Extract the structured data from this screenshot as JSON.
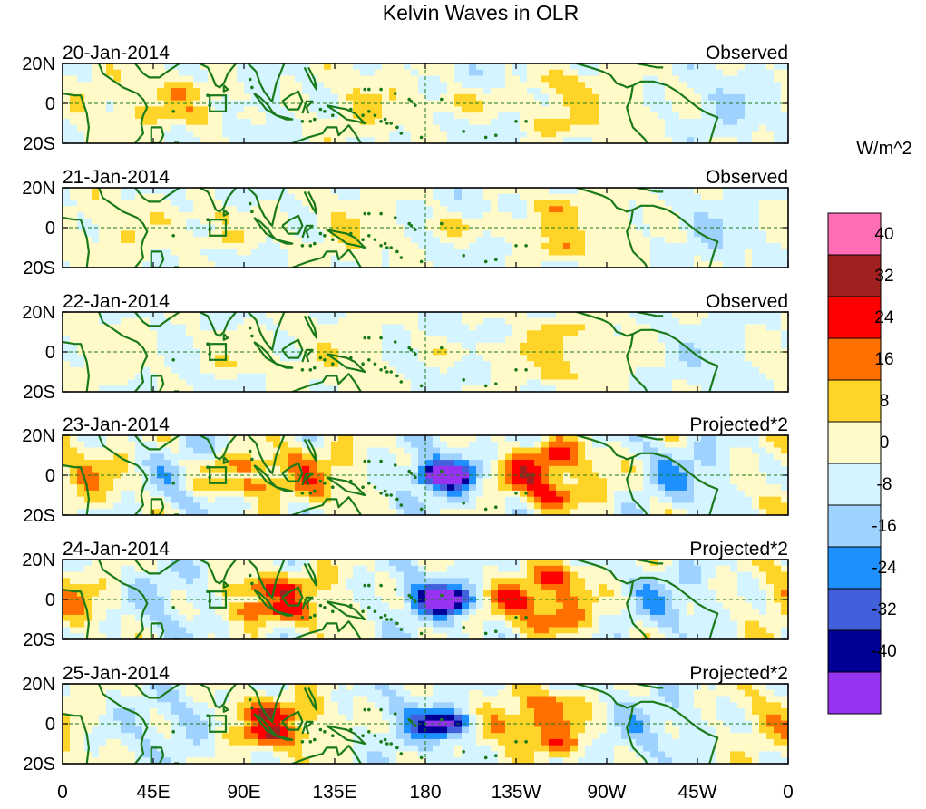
{
  "title": "Kelvin Waves in OLR",
  "colorbar": {
    "unit": "W/m^2",
    "colors": [
      "#ff6eb4",
      "#a02020",
      "#ff0000",
      "#ff7000",
      "#ffd428",
      "#fffac8",
      "#d4f4ff",
      "#a0d2ff",
      "#1e90ff",
      "#4060dc",
      "#000096",
      "#9632f0"
    ],
    "labels": [
      "40",
      "32",
      "24",
      "16",
      "8",
      "0",
      "-8",
      "-16",
      "-24",
      "-32",
      "-40"
    ]
  },
  "axes": {
    "lat_labels": [
      "20N",
      "0",
      "20S"
    ],
    "lon_labels": [
      "0",
      "45E",
      "90E",
      "135E",
      "180",
      "135W",
      "90W",
      "45W",
      "0"
    ]
  },
  "panels": [
    {
      "date": "20-Jan-2014",
      "label": "Observed",
      "amp": 0.75
    },
    {
      "date": "21-Jan-2014",
      "label": "Observed",
      "amp": 0.7
    },
    {
      "date": "22-Jan-2014",
      "label": "Observed",
      "amp": 0.55
    },
    {
      "date": "23-Jan-2014",
      "label": "Projected*2",
      "amp": 1.25
    },
    {
      "date": "24-Jan-2014",
      "label": "Projected*2",
      "amp": 1.15
    },
    {
      "date": "25-Jan-2014",
      "label": "Projected*2",
      "amp": 1.0
    }
  ],
  "colors": {
    "coast": "#1a7a1a",
    "equator": "#1a7a1a"
  }
}
